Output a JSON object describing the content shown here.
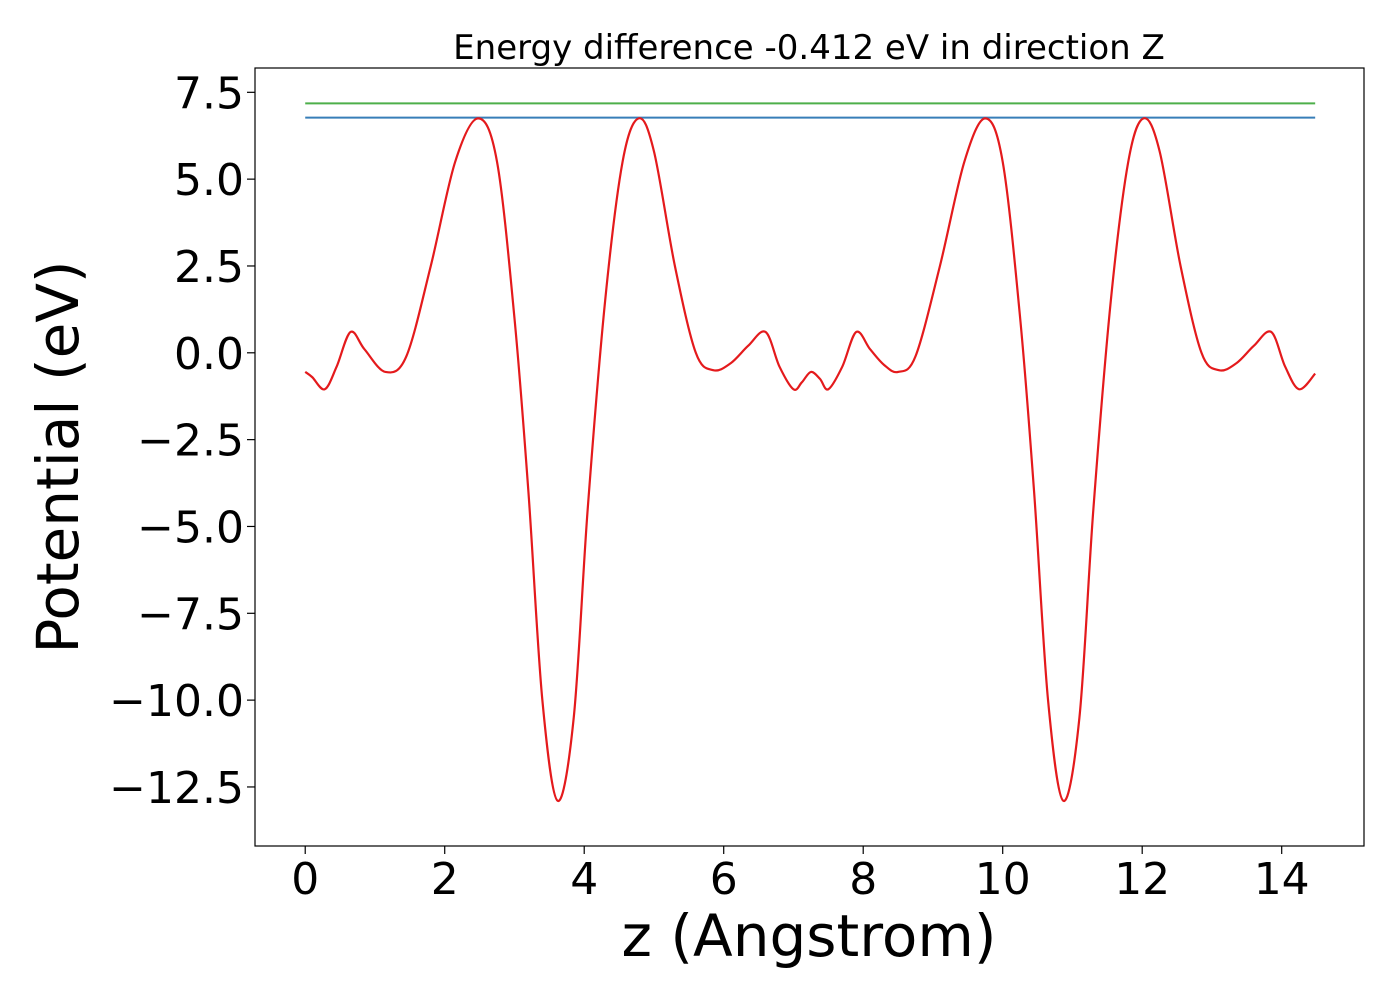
{
  "chart_data": {
    "type": "line",
    "title": "Energy difference -0.412 eV in direction Z",
    "xlabel": "z (Angstrom)",
    "ylabel": "Potential (eV)",
    "xlim": [
      -0.72,
      15.18
    ],
    "ylim": [
      -14.2,
      8.2
    ],
    "xticks": [
      0,
      2,
      4,
      6,
      8,
      10,
      12,
      14
    ],
    "xtick_labels": [
      "0",
      "2",
      "4",
      "6",
      "8",
      "10",
      "12",
      "14"
    ],
    "yticks": [
      7.5,
      5.0,
      2.5,
      0.0,
      -2.5,
      -5.0,
      -7.5,
      -10.0,
      -12.5
    ],
    "ytick_labels": [
      "7.5",
      "5.0",
      "2.5",
      "0.0",
      "−2.5",
      "−5.0",
      "−7.5",
      "−10.0",
      "−12.5"
    ],
    "grid": false,
    "colors": {
      "potential": "#e41a1c",
      "blue_level": "#377eb8",
      "green_level": "#4daf4a"
    },
    "series": [
      {
        "key": "potential",
        "x": [
          0.0,
          0.1,
          0.28,
          0.45,
          0.65,
          0.85,
          1.15,
          1.45,
          1.8,
          2.15,
          2.48,
          2.75,
          3.0,
          3.2,
          3.4,
          3.62,
          3.85,
          4.05,
          4.3,
          4.55,
          4.78,
          5.0,
          5.3,
          5.6,
          5.85,
          6.1,
          6.35,
          6.6,
          6.8,
          7.0,
          7.12,
          7.25,
          7.38,
          7.5,
          7.7,
          7.9,
          8.1,
          8.3,
          8.5,
          8.75,
          9.1,
          9.45,
          9.75,
          10.0,
          10.25,
          10.45,
          10.65,
          10.87,
          11.1,
          11.3,
          11.55,
          11.8,
          12.02,
          12.25,
          12.55,
          12.85,
          13.1,
          13.35,
          13.6,
          13.85,
          14.05,
          14.25,
          14.48
        ],
        "y": [
          -0.55,
          -0.7,
          -1.05,
          -0.4,
          0.6,
          0.1,
          -0.55,
          -0.1,
          2.5,
          5.5,
          6.75,
          5.5,
          1.0,
          -4.0,
          -10.0,
          -12.9,
          -10.5,
          -4.5,
          1.5,
          5.5,
          6.75,
          5.8,
          2.5,
          0.0,
          -0.5,
          -0.3,
          0.2,
          0.6,
          -0.4,
          -1.05,
          -0.85,
          -0.55,
          -0.75,
          -1.05,
          -0.4,
          0.6,
          0.1,
          -0.35,
          -0.55,
          -0.1,
          2.5,
          5.5,
          6.75,
          5.5,
          1.0,
          -4.0,
          -10.0,
          -12.9,
          -10.5,
          -4.5,
          1.5,
          5.5,
          6.75,
          5.8,
          2.5,
          0.0,
          -0.5,
          -0.3,
          0.2,
          0.6,
          -0.4,
          -1.05,
          -0.6
        ]
      },
      {
        "key": "blue_level",
        "x": [
          0.0,
          14.48
        ],
        "y": [
          6.77,
          6.77
        ]
      },
      {
        "key": "green_level",
        "x": [
          0.0,
          14.48
        ],
        "y": [
          7.18,
          7.18
        ]
      }
    ]
  }
}
